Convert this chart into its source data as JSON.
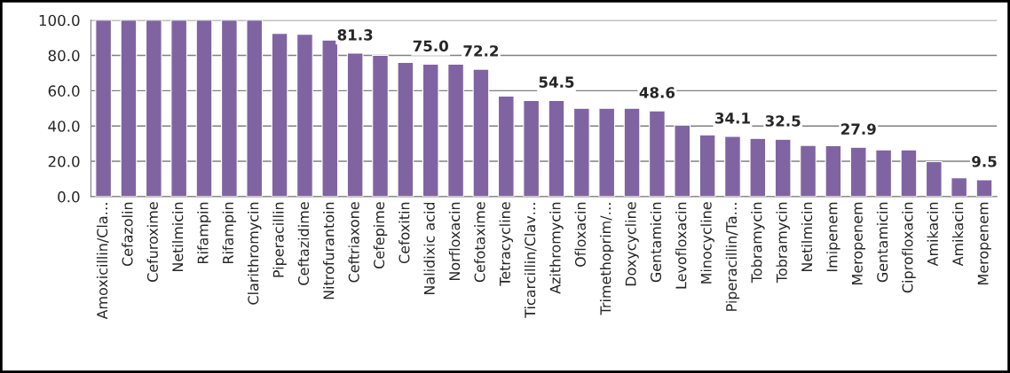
{
  "chart_data": {
    "type": "bar",
    "categories": [
      "Amoxicillin/Cla…",
      "Cefazolin",
      "Cefuroxime",
      "Netilmicin",
      "Rifampin",
      "Rifampin",
      "Clarithromycin",
      "Piperacillin",
      "Ceftazidime",
      "Nitrofurantoin",
      "Ceftriaxone",
      "Cefepime",
      "Cefoxitin",
      "Nalidixic acid",
      "Norfloxacin",
      "Cefotaxime",
      "Tetracycline",
      "Ticarcillin/Clav…",
      "Azithromycin",
      "Ofloxacin",
      "Trimethoprim/…",
      "Doxycycline",
      "Gentamicin",
      "Levofloxacin",
      "Minocycline",
      "Piperacillin/Ta…",
      "Tobramycin",
      "Tobramycin",
      "Netilmicin",
      "Imipenem",
      "Meropenem",
      "Gentamicin",
      "Ciprofloxacin",
      "Amikacin",
      "Amikacin",
      "Meropenem"
    ],
    "values": [
      100,
      100,
      100,
      100,
      100,
      100,
      100,
      92.5,
      92,
      88.7,
      81.3,
      80,
      76,
      75,
      75,
      72.2,
      57,
      54.5,
      54.5,
      50,
      50,
      50,
      48.6,
      40.5,
      35,
      34.1,
      33,
      32.5,
      29,
      28.8,
      27.9,
      26.5,
      26.5,
      19.8,
      10.6,
      9.5
    ],
    "value_labels": [
      null,
      null,
      null,
      null,
      null,
      null,
      null,
      null,
      null,
      null,
      "81.3",
      null,
      null,
      "75.0",
      null,
      "72.2",
      null,
      null,
      "54.5",
      null,
      null,
      null,
      "48.6",
      null,
      null,
      "34.1",
      null,
      "32.5",
      null,
      null,
      "27.9",
      null,
      null,
      null,
      null,
      "9.5"
    ],
    "color": "#8064a2",
    "ylim": [
      0,
      100
    ],
    "yticks": [
      {
        "value": 0,
        "label": "0.0"
      },
      {
        "value": 20,
        "label": "20.0"
      },
      {
        "value": 40,
        "label": "40.0"
      },
      {
        "value": 60,
        "label": "60.0"
      },
      {
        "value": 80,
        "label": "80.0"
      },
      {
        "value": 100,
        "label": "100.0"
      }
    ],
    "grid": "y"
  }
}
